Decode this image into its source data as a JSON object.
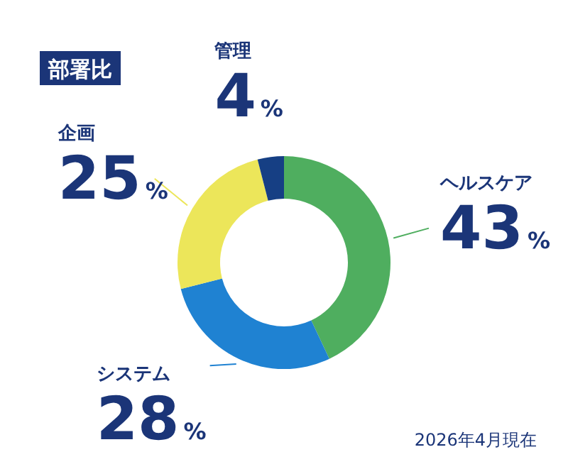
{
  "chart_data": {
    "type": "donut",
    "title": "部署比",
    "categories": [
      "ヘルスケア",
      "システム",
      "企画",
      "管理"
    ],
    "values": [
      43,
      28,
      25,
      4
    ],
    "value_labels": [
      "43%",
      "28%",
      "25%",
      "4%"
    ],
    "colors": [
      "#4fae5f",
      "#1f82d2",
      "#ece65a",
      "#163f84"
    ],
    "annotations": [
      "2026年4月現在"
    ]
  }
}
